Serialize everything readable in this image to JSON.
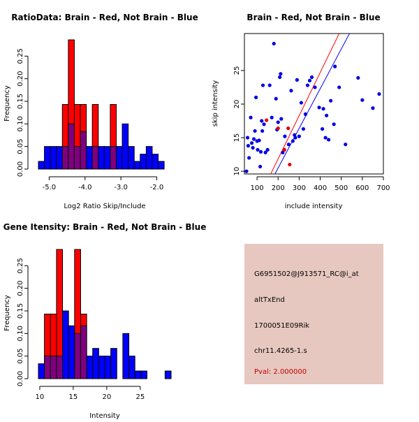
{
  "colors": {
    "red": "#ff0000",
    "blue": "#0000ff",
    "overlap": "#7f007f",
    "point_blue": "#0000e6",
    "point_red": "#e60000",
    "panel_bg": "#e6c8c0",
    "pval_text": "#c00000"
  },
  "chart_data": [
    {
      "type": "bar",
      "subtype": "overlaid-histogram",
      "title": "RatioData: Brain - Red, Not Brain - Blue",
      "xlabel": "Log2 Ratio Skip/Include",
      "ylabel": "Frequency",
      "xlim": [
        -5.3,
        -1.6
      ],
      "ylim": [
        0,
        0.3
      ],
      "xticks": [
        -5.0,
        -4.0,
        -3.0,
        -2.0
      ],
      "xtick_labels": [
        "-5.0",
        "-4.0",
        "-3.0",
        "-2.0"
      ],
      "yticks": [
        0.0,
        0.05,
        0.1,
        0.15,
        0.2,
        0.25
      ],
      "ytick_labels": [
        "0.00",
        "0.05",
        "0.10",
        "0.15",
        "0.20",
        "0.25"
      ],
      "bin_start": -5.3,
      "bin_width": 0.167,
      "series": [
        {
          "name": "Not Brain",
          "color": "blue",
          "values": [
            0.017,
            0.05,
            0.05,
            0.05,
            0.05,
            0.1,
            0.05,
            0.083,
            0.05,
            0.05,
            0.05,
            0.05,
            0.05,
            0.05,
            0.1,
            0.05,
            0.017,
            0.033,
            0.05,
            0.033,
            0.017
          ]
        },
        {
          "name": "Brain",
          "color": "red",
          "values": [
            0,
            0,
            0,
            0,
            0.143,
            0.286,
            0.143,
            0.143,
            0,
            0.143,
            0,
            0,
            0.143,
            0,
            0,
            0,
            0,
            0,
            0,
            0,
            0
          ]
        }
      ]
    },
    {
      "type": "scatter",
      "title": "Brain - Red, Not Brain - Blue",
      "xlabel": "include intensity",
      "ylabel": "skip intensity",
      "xlim": [
        40,
        700
      ],
      "ylim": [
        9.6,
        30.5
      ],
      "xticks": [
        100,
        200,
        300,
        400,
        500,
        600,
        700
      ],
      "xtick_labels": [
        "100",
        "200",
        "300",
        "400",
        "500",
        "600",
        "700"
      ],
      "yticks": [
        10,
        15,
        20,
        25
      ],
      "ytick_labels": [
        "10",
        "15",
        "20",
        "25"
      ],
      "series": [
        {
          "name": "Not Brain",
          "color": "blue",
          "points": [
            [
              50,
              10
            ],
            [
              55,
              15
            ],
            [
              58,
              13.8
            ],
            [
              62,
              12
            ],
            [
              70,
              18
            ],
            [
              75,
              14.2
            ],
            [
              80,
              13.5
            ],
            [
              85,
              14.8
            ],
            [
              90,
              16
            ],
            [
              95,
              21
            ],
            [
              100,
              14.5
            ],
            [
              103,
              13.2
            ],
            [
              110,
              14.6
            ],
            [
              115,
              10.7
            ],
            [
              118,
              12.9
            ],
            [
              122,
              17.5
            ],
            [
              125,
              16
            ],
            [
              128,
              22.8
            ],
            [
              133,
              17
            ],
            [
              140,
              12.8
            ],
            [
              150,
              13.2
            ],
            [
              160,
              22.8
            ],
            [
              170,
              18
            ],
            [
              180,
              29
            ],
            [
              190,
              20.8
            ],
            [
              195,
              16.2
            ],
            [
              200,
              17.3
            ],
            [
              208,
              24
            ],
            [
              212,
              24.5
            ],
            [
              215,
              17.8
            ],
            [
              222,
              12.8
            ],
            [
              232,
              15.2
            ],
            [
              250,
              14
            ],
            [
              262,
              22
            ],
            [
              270,
              14.5
            ],
            [
              278,
              15.4
            ],
            [
              282,
              15
            ],
            [
              290,
              23.6
            ],
            [
              300,
              15.2
            ],
            [
              310,
              20.2
            ],
            [
              320,
              16.3
            ],
            [
              330,
              18.5
            ],
            [
              340,
              22.8
            ],
            [
              350,
              23.5
            ],
            [
              360,
              24
            ],
            [
              375,
              22.5
            ],
            [
              395,
              19.5
            ],
            [
              410,
              16.3
            ],
            [
              415,
              19.3
            ],
            [
              425,
              15
            ],
            [
              430,
              18.3
            ],
            [
              440,
              14.7
            ],
            [
              450,
              20.5
            ],
            [
              465,
              17
            ],
            [
              470,
              25.6
            ],
            [
              490,
              22.5
            ],
            [
              520,
              14
            ],
            [
              580,
              23.9
            ],
            [
              600,
              20.6
            ],
            [
              650,
              19.4
            ],
            [
              680,
              21.5
            ]
          ]
        },
        {
          "name": "Brain",
          "color": "red",
          "points": [
            [
              145,
              17.6
            ],
            [
              200,
              16.4
            ],
            [
              230,
              13.2
            ],
            [
              248,
              16.4
            ],
            [
              255,
              11
            ]
          ]
        }
      ],
      "fit_lines": [
        {
          "name": "Brain fit",
          "color": "red",
          "x": [
            165,
            700
          ],
          "y": [
            9.6,
            44
          ]
        },
        {
          "name": "Not Brain fit",
          "color": "blue",
          "x": [
            185,
            700
          ],
          "y": [
            9.6,
            40
          ]
        }
      ]
    },
    {
      "type": "bar",
      "subtype": "overlaid-histogram",
      "title": "Gene Itensity: Brain - Red, Not Brain - Blue",
      "xlabel": "Intensity",
      "ylabel": "Frequency",
      "xlim": [
        9.8,
        29.6
      ],
      "ylim": [
        0,
        0.3
      ],
      "xticks": [
        10,
        15,
        20,
        25
      ],
      "xtick_labels": [
        "10",
        "15",
        "20",
        "25"
      ],
      "yticks": [
        0.0,
        0.05,
        0.1,
        0.15,
        0.2,
        0.25
      ],
      "ytick_labels": [
        "0.00",
        "0.05",
        "0.10",
        "0.15",
        "0.20",
        "0.25"
      ],
      "bin_start": 9.8,
      "bin_width": 0.9,
      "series": [
        {
          "name": "Not Brain",
          "color": "blue",
          "values": [
            0.033,
            0.05,
            0.05,
            0.05,
            0.15,
            0.117,
            0.1,
            0.117,
            0.05,
            0.067,
            0.05,
            0.05,
            0.067,
            0,
            0.1,
            0.05,
            0.017,
            0.017,
            0,
            0,
            0,
            0.017
          ]
        },
        {
          "name": "Brain",
          "color": "red",
          "values": [
            0,
            0.143,
            0.143,
            0.286,
            0,
            0,
            0.286,
            0.143,
            0,
            0,
            0,
            0,
            0,
            0,
            0,
            0,
            0,
            0,
            0,
            0,
            0,
            0
          ]
        }
      ]
    }
  ],
  "info_panel": {
    "probe_id": "G6951502@J913571_RC@i_at",
    "event_type": "altTxEnd",
    "gene_name": "1700051E09Rik",
    "locus": "chr11.4265-1.s",
    "pval": "Pval: 2.000000"
  }
}
